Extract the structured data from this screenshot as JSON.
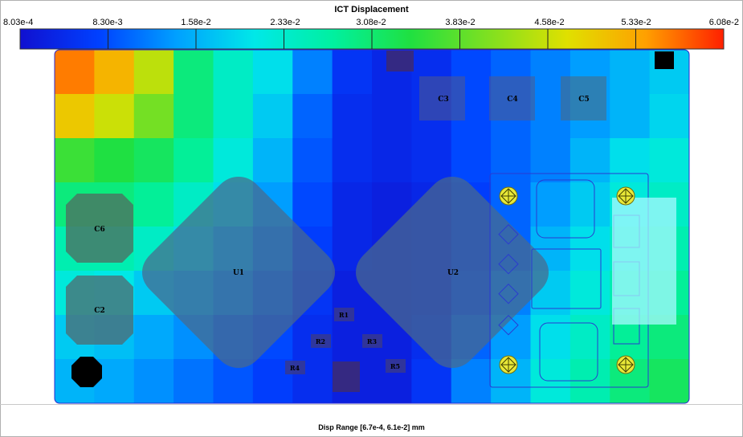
{
  "chart_data": {
    "type": "heatmap",
    "title": "ICT Displacement",
    "footer": "Disp Range [6.7e-4, 6.1e-2] mm",
    "colorbar": {
      "min": 0.000803,
      "max": 0.0608,
      "tick_labels": [
        "8.03e-4",
        "8.30e-3",
        "1.58e-2",
        "2.33e-2",
        "3.08e-2",
        "3.83e-2",
        "4.58e-2",
        "5.33e-2",
        "6.08e-2"
      ],
      "colors": [
        "#1010d0",
        "#0040ff",
        "#00a0ff",
        "#00e8e8",
        "#00f0a0",
        "#20e040",
        "#80e020",
        "#e0e000",
        "#ffa000",
        "#ff2000"
      ]
    },
    "field": {
      "cols": 16,
      "rows": 8,
      "values": [
        [
          0.056,
          0.052,
          0.045,
          0.03,
          0.024,
          0.02,
          0.012,
          0.006,
          0.004,
          0.005,
          0.008,
          0.01,
          0.012,
          0.014,
          0.016,
          0.018
        ],
        [
          0.05,
          0.046,
          0.04,
          0.03,
          0.024,
          0.018,
          0.01,
          0.005,
          0.004,
          0.005,
          0.008,
          0.01,
          0.012,
          0.014,
          0.016,
          0.019
        ],
        [
          0.036,
          0.034,
          0.032,
          0.028,
          0.022,
          0.016,
          0.009,
          0.005,
          0.004,
          0.005,
          0.008,
          0.01,
          0.012,
          0.016,
          0.02,
          0.022
        ],
        [
          0.03,
          0.03,
          0.028,
          0.024,
          0.02,
          0.014,
          0.008,
          0.004,
          0.003,
          0.004,
          0.007,
          0.01,
          0.014,
          0.018,
          0.022,
          0.024
        ],
        [
          0.026,
          0.026,
          0.024,
          0.02,
          0.016,
          0.012,
          0.007,
          0.004,
          0.003,
          0.004,
          0.007,
          0.01,
          0.016,
          0.02,
          0.024,
          0.026
        ],
        [
          0.022,
          0.021,
          0.018,
          0.016,
          0.013,
          0.01,
          0.006,
          0.003,
          0.003,
          0.004,
          0.008,
          0.012,
          0.018,
          0.022,
          0.026,
          0.028
        ],
        [
          0.018,
          0.017,
          0.015,
          0.013,
          0.01,
          0.008,
          0.005,
          0.003,
          0.003,
          0.005,
          0.01,
          0.014,
          0.02,
          0.024,
          0.028,
          0.03
        ],
        [
          0.016,
          0.015,
          0.013,
          0.011,
          0.009,
          0.007,
          0.005,
          0.003,
          0.003,
          0.006,
          0.012,
          0.016,
          0.022,
          0.026,
          0.03,
          0.032
        ]
      ]
    },
    "components": [
      {
        "label": "C3"
      },
      {
        "label": "C4"
      },
      {
        "label": "C5"
      },
      {
        "label": "C6"
      },
      {
        "label": "C2"
      },
      {
        "label": "U1"
      },
      {
        "label": "U2"
      },
      {
        "label": "R1"
      },
      {
        "label": "R2"
      },
      {
        "label": "R3"
      },
      {
        "label": "R4"
      },
      {
        "label": "R5"
      }
    ]
  }
}
